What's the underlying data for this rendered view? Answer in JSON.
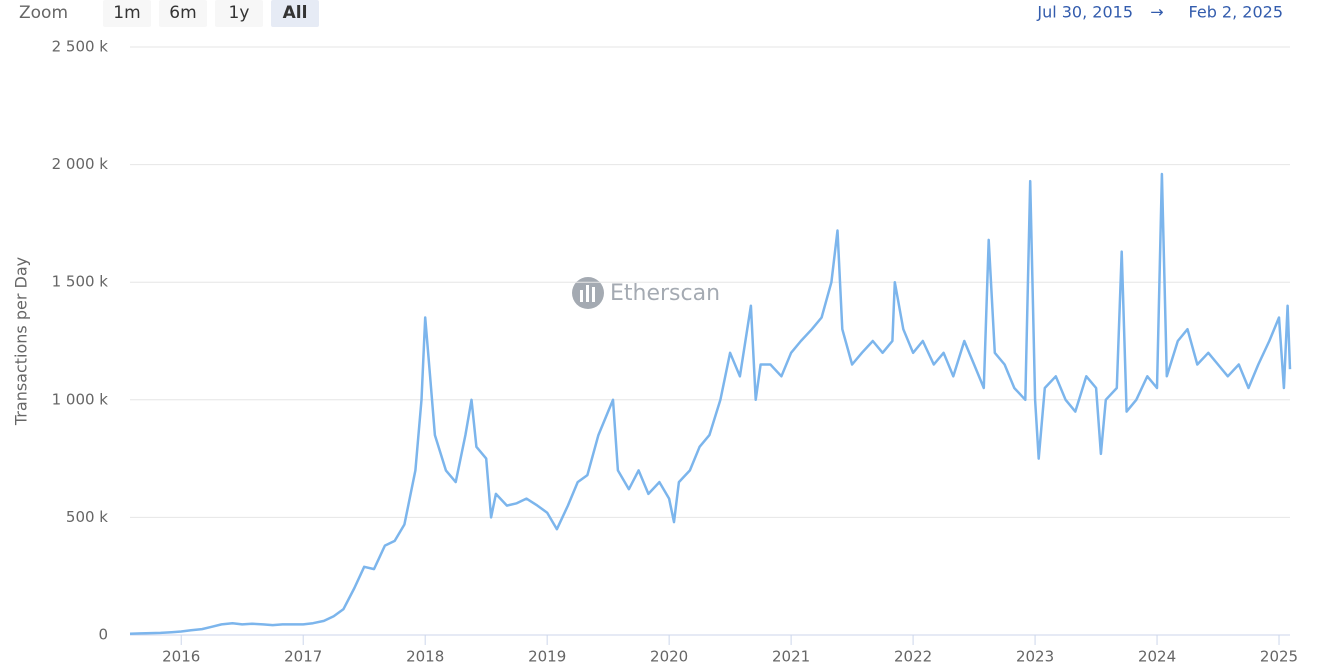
{
  "chart_data": {
    "type": "line",
    "zoom_label": "Zoom",
    "zoom_buttons": [
      "1m",
      "6m",
      "1y",
      "All"
    ],
    "selected_zoom": "All",
    "range_start": "Jul 30, 2015",
    "range_arrow": "→",
    "range_end": "Feb 2, 2025",
    "watermark": "Etherscan",
    "ylabel": "Transactions per Day",
    "xlim": [
      2015.58,
      2025.09
    ],
    "xticks": [
      2016,
      2017,
      2018,
      2019,
      2020,
      2021,
      2022,
      2023,
      2024,
      2025
    ],
    "ylim": [
      0,
      2500000
    ],
    "yticks": [
      0,
      {
        "value": 500000,
        "label": "500 k"
      },
      {
        "value": 1000000,
        "label": "1 000 k"
      },
      {
        "value": 1500000,
        "label": "1 500 k"
      },
      {
        "value": 2000000,
        "label": "2 000 k"
      },
      {
        "value": 2500000,
        "label": "2 500 k"
      }
    ],
    "grid": true,
    "series": [
      {
        "name": "Transactions",
        "color": "#7cb5ec",
        "x": [
          2015.58,
          2015.67,
          2015.75,
          2015.83,
          2015.92,
          2016.0,
          2016.08,
          2016.17,
          2016.25,
          2016.33,
          2016.42,
          2016.5,
          2016.58,
          2016.67,
          2016.75,
          2016.83,
          2016.92,
          2017.0,
          2017.08,
          2017.17,
          2017.25,
          2017.33,
          2017.42,
          2017.5,
          2017.58,
          2017.67,
          2017.75,
          2017.83,
          2017.92,
          2017.97,
          2018.0,
          2018.04,
          2018.08,
          2018.17,
          2018.25,
          2018.33,
          2018.38,
          2018.42,
          2018.5,
          2018.54,
          2018.58,
          2018.67,
          2018.75,
          2018.83,
          2018.92,
          2019.0,
          2019.08,
          2019.17,
          2019.25,
          2019.33,
          2019.42,
          2019.5,
          2019.54,
          2019.58,
          2019.67,
          2019.75,
          2019.83,
          2019.92,
          2020.0,
          2020.04,
          2020.08,
          2020.17,
          2020.25,
          2020.33,
          2020.42,
          2020.5,
          2020.58,
          2020.67,
          2020.71,
          2020.75,
          2020.83,
          2020.92,
          2021.0,
          2021.08,
          2021.17,
          2021.25,
          2021.33,
          2021.38,
          2021.42,
          2021.5,
          2021.58,
          2021.67,
          2021.75,
          2021.83,
          2021.85,
          2021.92,
          2022.0,
          2022.08,
          2022.17,
          2022.25,
          2022.33,
          2022.42,
          2022.5,
          2022.58,
          2022.62,
          2022.67,
          2022.75,
          2022.83,
          2022.92,
          2022.96,
          2023.0,
          2023.03,
          2023.08,
          2023.17,
          2023.25,
          2023.33,
          2023.42,
          2023.5,
          2023.54,
          2023.58,
          2023.67,
          2023.71,
          2023.75,
          2023.83,
          2023.92,
          2024.0,
          2024.04,
          2024.08,
          2024.17,
          2024.25,
          2024.33,
          2024.42,
          2024.5,
          2024.58,
          2024.67,
          2024.75,
          2024.83,
          2024.92,
          2025.0,
          2025.04,
          2025.07,
          2025.09
        ],
        "values": [
          5000,
          7000,
          8000,
          9000,
          12000,
          15000,
          20000,
          25000,
          35000,
          45000,
          50000,
          45000,
          48000,
          45000,
          42000,
          45000,
          45000,
          45000,
          50000,
          60000,
          80000,
          110000,
          200000,
          290000,
          280000,
          380000,
          400000,
          470000,
          700000,
          1000000,
          1350000,
          1100000,
          850000,
          700000,
          650000,
          850000,
          1000000,
          800000,
          750000,
          500000,
          600000,
          550000,
          560000,
          580000,
          550000,
          520000,
          450000,
          550000,
          650000,
          680000,
          850000,
          950000,
          1000000,
          700000,
          620000,
          700000,
          600000,
          650000,
          580000,
          480000,
          650000,
          700000,
          800000,
          850000,
          1000000,
          1200000,
          1100000,
          1400000,
          1000000,
          1150000,
          1150000,
          1100000,
          1200000,
          1250000,
          1300000,
          1350000,
          1500000,
          1720000,
          1300000,
          1150000,
          1200000,
          1250000,
          1200000,
          1250000,
          1500000,
          1300000,
          1200000,
          1250000,
          1150000,
          1200000,
          1100000,
          1250000,
          1150000,
          1050000,
          1680000,
          1200000,
          1150000,
          1050000,
          1000000,
          1930000,
          1000000,
          750000,
          1050000,
          1100000,
          1000000,
          950000,
          1100000,
          1050000,
          770000,
          1000000,
          1050000,
          1630000,
          950000,
          1000000,
          1100000,
          1050000,
          1960000,
          1100000,
          1250000,
          1300000,
          1150000,
          1200000,
          1150000,
          1100000,
          1150000,
          1050000,
          1150000,
          1250000,
          1350000,
          1050000,
          1400000,
          1130000
        ]
      }
    ]
  }
}
